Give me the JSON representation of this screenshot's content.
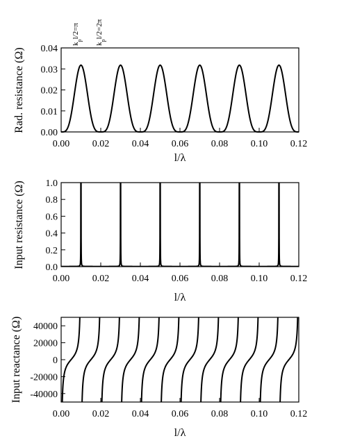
{
  "chart_data": [
    {
      "type": "line",
      "xlabel": "l/λ",
      "ylabel": "Rad. resistance (Ω)",
      "xlim": [
        0,
        0.12
      ],
      "ylim": [
        0,
        0.04
      ],
      "xticks": [
        "0.00",
        "0.02",
        "0.04",
        "0.06",
        "0.08",
        "0.10",
        "0.12"
      ],
      "yticks": [
        "0.00",
        "0.01",
        "0.02",
        "0.03",
        "0.04"
      ],
      "peak_value": 0.0318,
      "peak_positions": [
        0.01,
        0.03,
        0.05,
        0.07,
        0.09,
        0.11
      ],
      "zero_positions": [
        0.0,
        0.02,
        0.04,
        0.06,
        0.08,
        0.1,
        0.12
      ],
      "annotations": [
        {
          "text": "kpl/2=π",
          "x": 0.01
        },
        {
          "text": "kpl/2=2π",
          "x": 0.02
        }
      ]
    },
    {
      "type": "line",
      "xlabel": "l/λ",
      "ylabel": "Input resistance (Ω)",
      "xlim": [
        0,
        0.12
      ],
      "ylim": [
        0,
        1.0
      ],
      "xticks": [
        "0.00",
        "0.02",
        "0.04",
        "0.06",
        "0.08",
        "0.10",
        "0.12"
      ],
      "yticks": [
        "0.0",
        "0.2",
        "0.4",
        "0.6",
        "0.8",
        "1.0"
      ],
      "resonance_positions": [
        0.01,
        0.03,
        0.05,
        0.07,
        0.09,
        0.11
      ]
    },
    {
      "type": "line",
      "xlabel": "l/λ",
      "ylabel": "Input reactance (Ω)",
      "xlim": [
        0,
        0.12
      ],
      "ylim": [
        -50000,
        50000
      ],
      "xticks": [
        "0.00",
        "0.02",
        "0.04",
        "0.06",
        "0.08",
        "0.10",
        "0.12"
      ],
      "yticks": [
        "-40000",
        "-20000",
        "0",
        "20000",
        "40000"
      ],
      "pole_positions": [
        0.0,
        0.01,
        0.02,
        0.03,
        0.04,
        0.05,
        0.06,
        0.07,
        0.08,
        0.09,
        0.1,
        0.11,
        0.12
      ]
    }
  ]
}
